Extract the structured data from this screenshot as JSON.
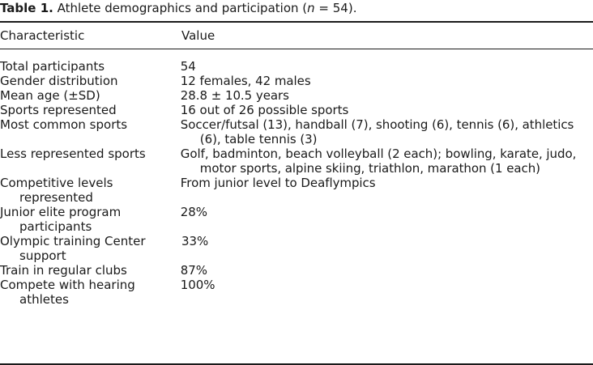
{
  "caption": {
    "label": "Table 1.",
    "text": "Athlete demographics and participation (",
    "n_symbol": "n",
    "n_value": " = 54)."
  },
  "header": {
    "characteristic": "Characteristic",
    "value": "Value"
  },
  "rows": [
    {
      "characteristic": "Total participants",
      "value": "54"
    },
    {
      "characteristic": "Gender distribution",
      "value": "12 females, 42 males"
    },
    {
      "characteristic": "Mean age (±SD)",
      "value": "28.8 ± 10.5 years"
    },
    {
      "characteristic": "Sports represented",
      "value": "16 out of 26 possible sports"
    },
    {
      "characteristic": "Most common sports",
      "value": "Soccer/futsal (13), handball (7), shooting (6), tennis (6), athletics (6), table tennis (3)"
    },
    {
      "characteristic": "Less represented sports",
      "value": "Golf, badminton, beach volleyball (2 each); bowling, karate, judo, motor sports, alpine skiing, triathlon, marathon (1 each)"
    },
    {
      "characteristic": "Competitive levels represented",
      "value": "From junior level to Deaflympics"
    },
    {
      "characteristic": "Junior elite program participants",
      "value": "28%"
    },
    {
      "characteristic": "Olympic training Center support",
      "value": "33%"
    },
    {
      "characteristic": "Train in regular clubs",
      "value": "87%"
    },
    {
      "characteristic": "Compete with hearing athletes",
      "value": "100%"
    }
  ]
}
